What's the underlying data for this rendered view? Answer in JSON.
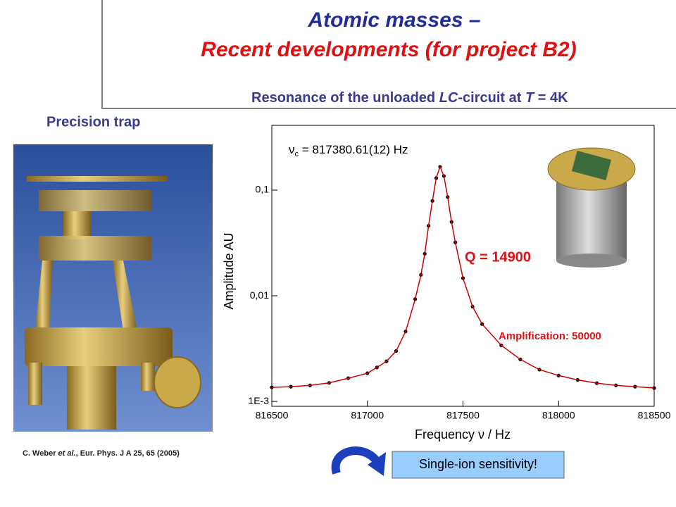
{
  "header": {
    "title": "Atomic masses –",
    "title_line2": "Recent developments (for project B2)",
    "subtitle": [
      "Resonance of the unloaded ",
      "LC",
      "-circuit at ",
      "T",
      " = 4K"
    ]
  },
  "left": {
    "heading": "Precision trap",
    "citation": [
      "C. Weber ",
      "et al.",
      ", Eur. Phys. J A 25, 65 (2005)"
    ]
  },
  "callout": "Single-ion sensitivity!",
  "chart_data": {
    "type": "scatter-line",
    "log_y": true,
    "xlabel": [
      "Frequency  ",
      "ν",
      "  / Hz"
    ],
    "ylabel": "Amplitude AU",
    "annotations": {
      "fit_symbol": "ν",
      "fit_subscript": "c",
      "fit_text": " = 817380.61(12) Hz",
      "q": "Q = 14900",
      "amplification": "Amplification: 50000"
    },
    "color": "#000000",
    "line_color": "#cc0000",
    "x": [
      816500,
      816600,
      816700,
      816800,
      816900,
      817000,
      817050,
      817100,
      817150,
      817200,
      817250,
      817280,
      817300,
      817320,
      817340,
      817360,
      817380,
      817400,
      817420,
      817440,
      817460,
      817500,
      817550,
      817600,
      817700,
      817800,
      817900,
      818000,
      818100,
      818200,
      818300,
      818400,
      818500
    ],
    "values": [
      0.00136,
      0.00138,
      0.00142,
      0.0015,
      0.00166,
      0.00185,
      0.0021,
      0.0024,
      0.003,
      0.0046,
      0.0093,
      0.0158,
      0.025,
      0.046,
      0.079,
      0.13,
      0.166,
      0.136,
      0.086,
      0.05,
      0.032,
      0.0147,
      0.0079,
      0.0054,
      0.0034,
      0.0025,
      0.002,
      0.00176,
      0.0016,
      0.00149,
      0.00142,
      0.00138,
      0.00134
    ],
    "xlim": [
      816500,
      818500
    ],
    "xticks": [
      816500,
      817000,
      817500,
      818000,
      818500
    ],
    "ylim": [
      0.0009,
      0.41
    ],
    "yticks": [
      {
        "value": 0.001,
        "label": "1E-3"
      },
      {
        "value": 0.01,
        "label": "0,01"
      },
      {
        "value": 0.1,
        "label": "0,1"
      }
    ]
  }
}
